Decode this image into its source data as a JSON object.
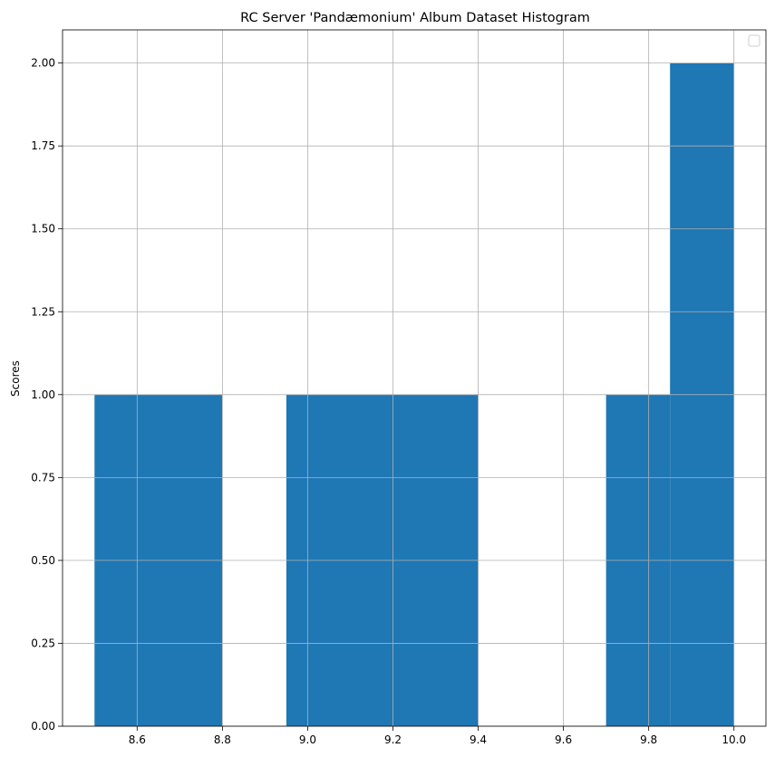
{
  "chart_data": {
    "type": "bar",
    "title": "RC Server 'Pandæmonium' Album Dataset Histogram",
    "xlabel": "",
    "ylabel": "Scores",
    "xlim": [
      8.425,
      10.075
    ],
    "ylim": [
      0,
      2.1
    ],
    "grid": true,
    "legend": {
      "placement": "top-right",
      "entries": []
    },
    "bar_color": "#1f77b4",
    "grid_color": "#b0b0b0",
    "bins": [
      {
        "x0": 8.5,
        "x1": 8.8,
        "value": 1
      },
      {
        "x0": 8.95,
        "x1": 9.4,
        "value": 1
      },
      {
        "x0": 9.7,
        "x1": 9.85,
        "value": 1
      },
      {
        "x0": 9.85,
        "x1": 10.0,
        "value": 2
      }
    ],
    "x_ticks": [
      {
        "value": 8.6,
        "label": "8.6"
      },
      {
        "value": 8.8,
        "label": "8.8"
      },
      {
        "value": 9.0,
        "label": "9.0"
      },
      {
        "value": 9.2,
        "label": "9.2"
      },
      {
        "value": 9.4,
        "label": "9.4"
      },
      {
        "value": 9.6,
        "label": "9.6"
      },
      {
        "value": 9.8,
        "label": "9.8"
      },
      {
        "value": 10.0,
        "label": "10.0"
      }
    ],
    "y_ticks": [
      {
        "value": 0,
        "label": "0.00"
      },
      {
        "value": 0.25,
        "label": "0.25"
      },
      {
        "value": 0.5,
        "label": "0.50"
      },
      {
        "value": 0.75,
        "label": "0.75"
      },
      {
        "value": 1.0,
        "label": "1.00"
      },
      {
        "value": 1.25,
        "label": "1.25"
      },
      {
        "value": 1.5,
        "label": "1.50"
      },
      {
        "value": 1.75,
        "label": "1.75"
      },
      {
        "value": 2.0,
        "label": "2.00"
      }
    ]
  }
}
